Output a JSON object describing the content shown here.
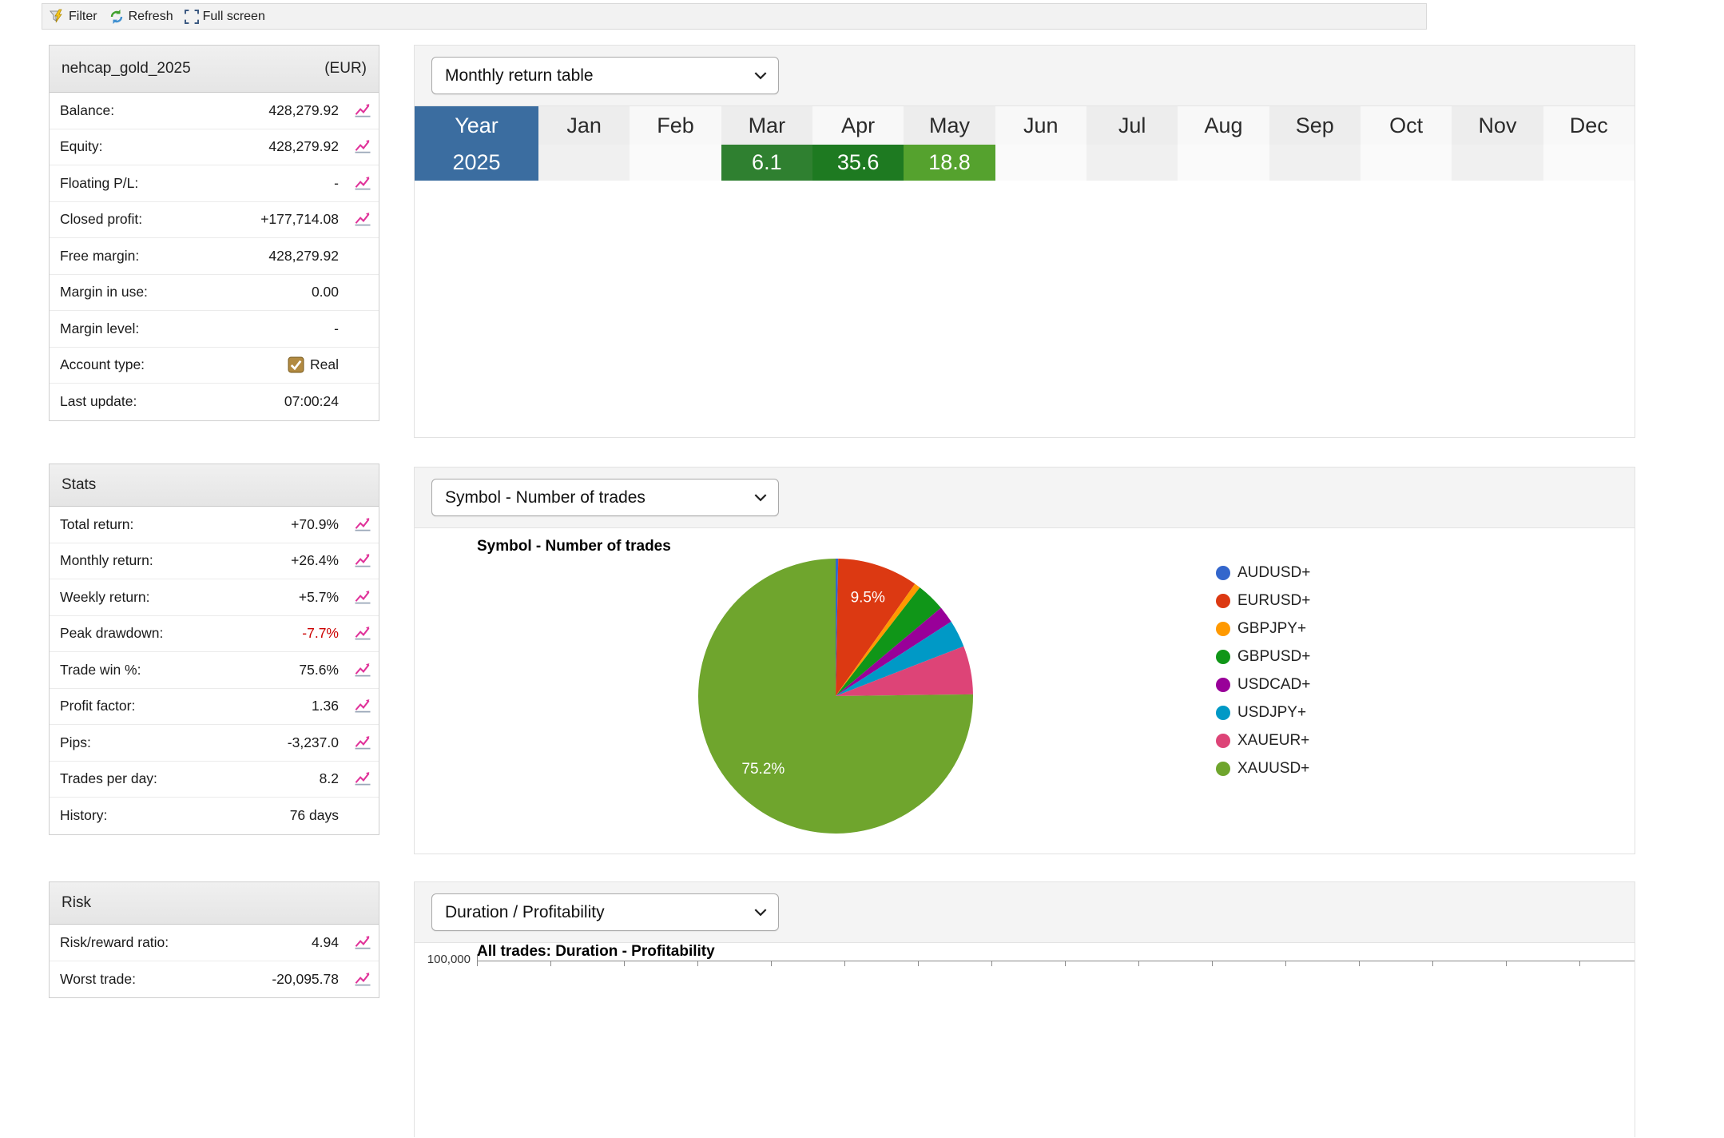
{
  "toolbar": {
    "filter": "Filter",
    "refresh": "Refresh",
    "fullscreen": "Full screen"
  },
  "account": {
    "title": "nehcap_gold_2025",
    "currency": "(EUR)",
    "rows": [
      {
        "label": "Balance:",
        "value": "428,279.92",
        "icon": true
      },
      {
        "label": "Equity:",
        "value": "428,279.92",
        "icon": true
      },
      {
        "label": "Floating P/L:",
        "value": "-",
        "icon": true
      },
      {
        "label": "Closed profit:",
        "value": "+177,714.08",
        "icon": true
      },
      {
        "label": "Free margin:",
        "value": "428,279.92",
        "icon": false
      },
      {
        "label": "Margin in use:",
        "value": "0.00",
        "icon": false
      },
      {
        "label": "Margin level:",
        "value": "-",
        "icon": false
      },
      {
        "label": "Account type:",
        "value": "Real",
        "icon": false,
        "checkbox": true
      },
      {
        "label": "Last update:",
        "value": "07:00:24",
        "icon": false
      }
    ]
  },
  "stats": {
    "title": "Stats",
    "rows": [
      {
        "label": "Total return:",
        "value": "+70.9%",
        "icon": true
      },
      {
        "label": "Monthly return:",
        "value": "+26.4%",
        "icon": true
      },
      {
        "label": "Weekly return:",
        "value": "+5.7%",
        "icon": true
      },
      {
        "label": "Peak drawdown:",
        "value": "-7.7%",
        "icon": true,
        "negative": true
      },
      {
        "label": "Trade win %:",
        "value": "75.6%",
        "icon": true
      },
      {
        "label": "Profit factor:",
        "value": "1.36",
        "icon": true
      },
      {
        "label": "Pips:",
        "value": "-3,237.0",
        "icon": true
      },
      {
        "label": "Trades per day:",
        "value": "8.2",
        "icon": true
      },
      {
        "label": "History:",
        "value": "76 days",
        "icon": false
      }
    ]
  },
  "risk": {
    "title": "Risk",
    "rows": [
      {
        "label": "Risk/reward ratio:",
        "value": "4.94",
        "icon": true
      },
      {
        "label": "Worst trade:",
        "value": "-20,095.78",
        "icon": true
      }
    ]
  },
  "sections": {
    "monthly": {
      "select": "Monthly return table"
    },
    "pie": {
      "select": "Symbol - Number of trades"
    },
    "duration": {
      "select": "Duration / Profitability"
    }
  },
  "chart_data": [
    {
      "type": "table",
      "title": "Monthly return table",
      "columns": [
        "Year",
        "Jan",
        "Feb",
        "Mar",
        "Apr",
        "May",
        "Jun",
        "Jul",
        "Aug",
        "Sep",
        "Oct",
        "Nov",
        "Dec"
      ],
      "year_color": "#3b6da0",
      "header_alt_colors": [
        "#ededed",
        "#f8f8f8"
      ],
      "row_alt_colors": [
        "#f0f0f0",
        "#fafafa"
      ],
      "rows": [
        {
          "year": "2025",
          "cells": {
            "Mar": {
              "text": "6.1",
              "color": "#2f8030"
            },
            "Apr": {
              "text": "35.6",
              "color": "#1e7a21"
            },
            "May": {
              "text": "18.8",
              "color": "#55a22e"
            }
          }
        }
      ]
    },
    {
      "type": "pie",
      "title": "Symbol - Number of trades",
      "legend_position": "right",
      "label_threshold_pct": 9,
      "shown_labels": [
        "9.5%",
        "75.2%"
      ],
      "slices": [
        {
          "label": "AUDUSD+",
          "value": 0.3,
          "color": "#3366CC"
        },
        {
          "label": "EURUSD+",
          "value": 9.5,
          "color": "#DC3912"
        },
        {
          "label": "GBPJPY+",
          "value": 0.7,
          "color": "#FF9900"
        },
        {
          "label": "GBPUSD+",
          "value": 3.4,
          "color": "#109618"
        },
        {
          "label": "USDCAD+",
          "value": 2.0,
          "color": "#990099"
        },
        {
          "label": "USDJPY+",
          "value": 3.2,
          "color": "#0099C6"
        },
        {
          "label": "XAUEUR+",
          "value": 5.7,
          "color": "#DD4477"
        },
        {
          "label": "XAUUSD+",
          "value": 75.2,
          "color": "#6FA52D"
        }
      ]
    },
    {
      "type": "scatter",
      "title": "All trades: Duration - Profitability",
      "y_tick_top": "100,000",
      "clipped": true
    }
  ]
}
